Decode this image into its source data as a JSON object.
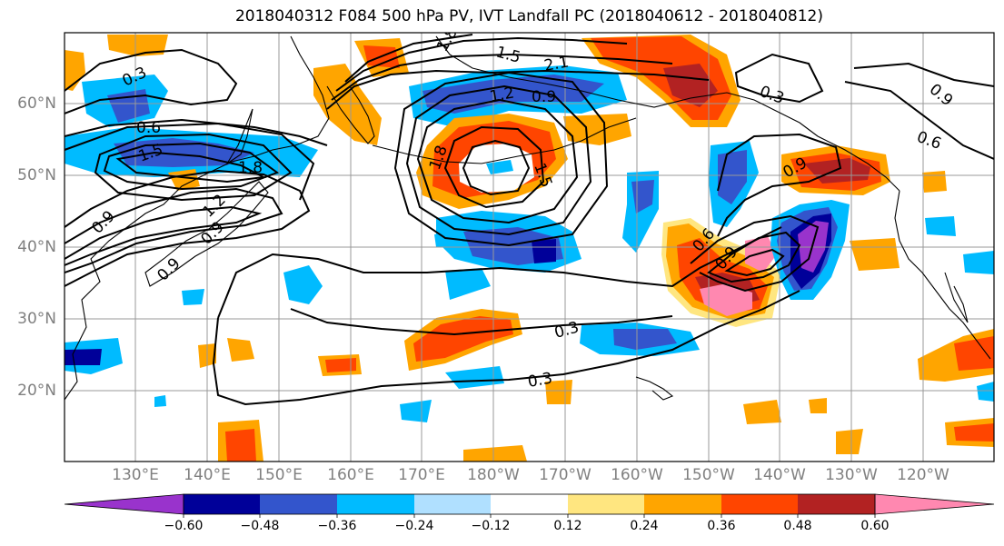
{
  "title": "2018040312 F084 500 hPa PV, IVT Landfall PC (2018040612 - 2018040812)",
  "map": {
    "lat_labels": [
      "60°N",
      "50°N",
      "40°N",
      "30°N",
      "20°N"
    ],
    "lon_labels": [
      "130°E",
      "140°E",
      "150°E",
      "160°E",
      "170°E",
      "180°W",
      "170°W",
      "160°W",
      "150°W",
      "140°W",
      "130°W",
      "120°W"
    ],
    "contour_labels": [
      "0.3",
      "0.6",
      "0.9",
      "1.2",
      "1.5",
      "1.8",
      "2.1"
    ],
    "colors": {
      "neg060": "#9933cc",
      "neg048": "#000099",
      "neg036": "#3355cc",
      "neg024": "#00bbff",
      "neg012": "#b0e0ff",
      "neutral": "#ffffff",
      "pos012": "#ffe680",
      "pos024": "#ffa500",
      "pos036": "#ff4500",
      "pos048": "#b22222",
      "pos060": "#ff88b0"
    }
  },
  "colorbar": {
    "ticks": [
      "−0.60",
      "−0.48",
      "−0.36",
      "−0.24",
      "−0.12",
      "0.12",
      "0.24",
      "0.36",
      "0.48",
      "0.60"
    ]
  }
}
